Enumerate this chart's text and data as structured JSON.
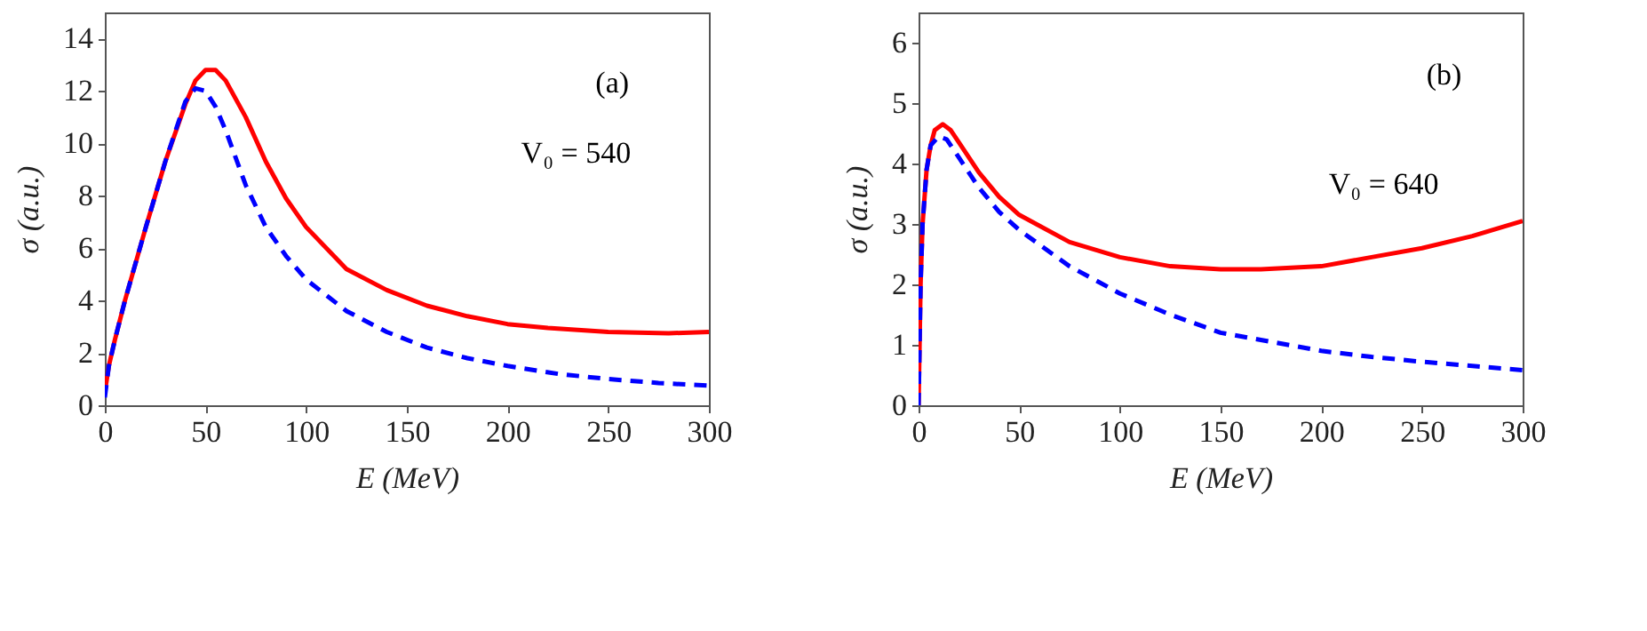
{
  "chart_data": [
    {
      "type": "line",
      "xlabel": "E (MeV)",
      "ylabel": "σ (a.u.)",
      "xlim": [
        0,
        300
      ],
      "xticks": [
        0,
        50,
        100,
        150,
        200,
        250,
        300
      ],
      "ylim": [
        0,
        15
      ],
      "yticks": [
        0,
        2,
        4,
        6,
        8,
        10,
        12,
        14
      ],
      "grid": false,
      "annotations": [
        "(a)",
        "V₀ = 540"
      ],
      "series": [
        {
          "color": "#ff0000",
          "line_style": "solid",
          "x": [
            0,
            2,
            5,
            10,
            20,
            30,
            40,
            45,
            50,
            55,
            60,
            70,
            80,
            90,
            100,
            120,
            140,
            160,
            180,
            200,
            220,
            250,
            280,
            300
          ],
          "values": [
            0.5,
            1.5,
            2.5,
            4,
            6.7,
            9.3,
            11.5,
            12.4,
            12.8,
            12.8,
            12.4,
            11,
            9.3,
            7.9,
            6.8,
            5.2,
            4.4,
            3.8,
            3.4,
            3.1,
            2.95,
            2.8,
            2.75,
            2.8
          ]
        },
        {
          "color": "#0000ff",
          "line_style": "dashed",
          "x": [
            0,
            2,
            5,
            10,
            20,
            30,
            40,
            45,
            50,
            55,
            60,
            70,
            80,
            90,
            100,
            120,
            140,
            160,
            180,
            200,
            225,
            250,
            275,
            300
          ],
          "values": [
            0.3,
            1.5,
            2.5,
            4,
            6.7,
            9.3,
            11.6,
            12.1,
            12,
            11.4,
            10.5,
            8.4,
            6.8,
            5.7,
            4.8,
            3.6,
            2.8,
            2.2,
            1.8,
            1.5,
            1.2,
            1,
            0.85,
            0.75
          ]
        }
      ]
    },
    {
      "type": "line",
      "xlabel": "E (MeV)",
      "ylabel": "σ (a.u.)",
      "xlim": [
        0,
        300
      ],
      "xticks": [
        0,
        50,
        100,
        150,
        200,
        250,
        300
      ],
      "ylim": [
        0,
        6.5
      ],
      "yticks": [
        0,
        1,
        2,
        3,
        4,
        5,
        6
      ],
      "grid": false,
      "annotations": [
        "(b)",
        "V₀ = 640"
      ],
      "series": [
        {
          "color": "#ff0000",
          "line_style": "solid",
          "x": [
            0,
            1,
            2,
            4,
            6,
            8,
            12,
            16,
            20,
            30,
            40,
            50,
            75,
            100,
            125,
            150,
            170,
            200,
            225,
            250,
            275,
            300
          ],
          "values": [
            0,
            2,
            3,
            3.9,
            4.3,
            4.55,
            4.65,
            4.55,
            4.35,
            3.85,
            3.45,
            3.15,
            2.7,
            2.45,
            2.3,
            2.25,
            2.25,
            2.3,
            2.45,
            2.6,
            2.8,
            3.05
          ]
        },
        {
          "color": "#0000ff",
          "line_style": "dashed",
          "x": [
            0,
            1,
            2,
            4,
            6,
            10,
            14,
            20,
            30,
            40,
            50,
            75,
            100,
            125,
            150,
            175,
            200,
            225,
            250,
            275,
            300
          ],
          "values": [
            0,
            2,
            3,
            3.9,
            4.3,
            4.45,
            4.4,
            4.1,
            3.6,
            3.2,
            2.9,
            2.3,
            1.85,
            1.5,
            1.2,
            1.05,
            0.9,
            0.8,
            0.72,
            0.65,
            0.58
          ]
        }
      ]
    }
  ]
}
